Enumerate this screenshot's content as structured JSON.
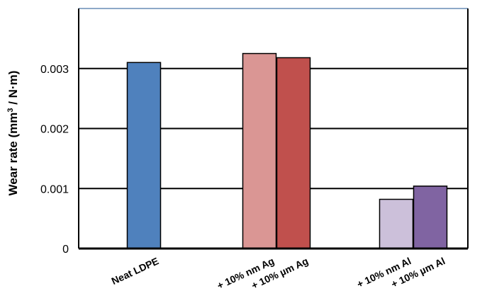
{
  "chart_data": {
    "type": "bar",
    "title": "",
    "xlabel": "",
    "ylabel_main": "Wear rate (mm",
    "ylabel_sup": "3",
    "ylabel_tail": " / N·m)",
    "ylim": [
      0,
      0.004
    ],
    "y_ticks": [
      {
        "value": 0,
        "label": "0"
      },
      {
        "value": 0.001,
        "label": "0.001"
      },
      {
        "value": 0.002,
        "label": "0.002"
      },
      {
        "value": 0.003,
        "label": "0.003"
      }
    ],
    "grid": true,
    "legend": "none",
    "categories": [
      "Neat LDPE",
      "+ 10% nm Ag",
      "+ 10% µm Ag",
      "+ 10% nm Al",
      "+ 10% µm Al"
    ],
    "values": [
      0.0031,
      0.00325,
      0.00318,
      0.00082,
      0.00104
    ],
    "colors": [
      "#4f81bd",
      "#da9694",
      "#c0504d",
      "#ccc0da",
      "#8064a2"
    ]
  }
}
